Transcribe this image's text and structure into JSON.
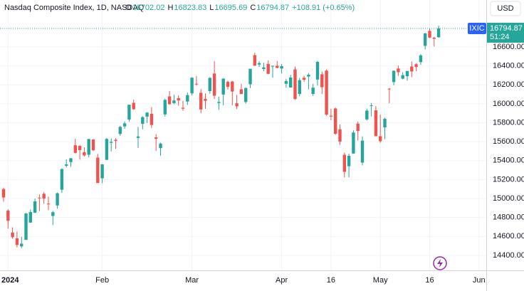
{
  "chart_data": {
    "type": "candlestick",
    "title": "Nasdaq Composite Index, 1D, NASDAQ",
    "legend_labels": [
      "O",
      "H",
      "L",
      "C"
    ],
    "change": "+108.91 (+0.65%)",
    "currency": "USD",
    "symbol": "IXIC",
    "countdown": "51:24",
    "up_color": "#26a69a",
    "down_color": "#ef5350",
    "grid": true,
    "categories": [
      null,
      "2024",
      null,
      null,
      null,
      null,
      null,
      null,
      null,
      null,
      null,
      null,
      null,
      null,
      null,
      null,
      null,
      null,
      null,
      null,
      null,
      null,
      "Feb",
      null,
      null,
      null,
      null,
      null,
      null,
      null,
      null,
      null,
      null,
      null,
      null,
      null,
      null,
      null,
      null,
      null,
      null,
      null,
      "Mar",
      null,
      null,
      null,
      null,
      null,
      null,
      null,
      null,
      null,
      null,
      null,
      null,
      null,
      null,
      null,
      null,
      null,
      null,
      null,
      "Apr",
      null,
      null,
      null,
      null,
      null,
      null,
      null,
      null,
      null,
      null,
      "16",
      null,
      null,
      null,
      null,
      null,
      null,
      null,
      null,
      null,
      null,
      "May",
      null,
      null,
      null,
      null,
      null,
      null,
      null,
      null,
      null,
      null,
      "16",
      null,
      null,
      null,
      null,
      null,
      null,
      null,
      null,
      null,
      null,
      "Jun"
    ],
    "open": [
      15100,
      14873,
      14641,
      14580,
      14495,
      14564,
      14746,
      14851,
      15009,
      15050,
      14946,
      14816,
      14927,
      15093,
      15346,
      15385,
      15562,
      15555,
      15489,
      15462,
      15623,
      15432,
      15213,
      15408,
      15588,
      15620,
      15681,
      15761,
      15834,
      16010,
      15640,
      15788,
      15864,
      15895,
      15645,
      15532,
      15888,
      16078,
      16007,
      16060,
      15958,
      16023,
      16110,
      16211,
      16116,
      16051,
      16134,
      16319,
      16008,
      16097,
      16232,
      16235,
      16005,
      16153,
      16019,
      16206,
      16513,
      16414,
      16367,
      16420,
      16397,
      16401,
      16371,
      16211,
      16172,
      16363,
      16103,
      16274,
      16287,
      16104,
      16256,
      16311,
      16350,
      15874,
      15950,
      15731,
      15462,
      15341,
      15475,
      15791,
      15379,
      15835,
      15982,
      15931,
      15658,
      15751,
      16159,
      16229,
      16372,
      16265,
      16291,
      16393,
      16417,
      16440,
      16611,
      16769,
      16697,
      16702.02,
      null,
      null,
      null,
      null,
      null,
      null,
      null,
      null,
      null
    ],
    "high": [
      15112,
      14887,
      14696,
      14651,
      14596,
      14847,
      14884,
      14999,
      15043,
      15069,
      15019,
      14868,
      15064,
      15320,
      15413,
      15428,
      15629,
      15563,
      15541,
      15628,
      15626,
      15471,
      15363,
      15639,
      15634,
      15636,
      15768,
      15813,
      15990,
      16043,
      15756,
      15870,
      15913,
      15964,
      15678,
      15590,
      16055,
      16135,
      16096,
      16089,
      16030,
      16119,
      16281,
      16293,
      16154,
      16110,
      16281,
      16449,
      16075,
      16271,
      16244,
      16240,
      16093,
      16210,
      16171,
      16370,
      16539,
      16449,
      16433,
      16458,
      16403,
      16452,
      16418,
      16262,
      16306,
      16392,
      16273,
      16296,
      16323,
      16210,
      16453,
      16340,
      16363,
      15948,
      15960,
      15781,
      15484,
      15472,
      15720,
      15811,
      15656,
      15948,
      16008,
      15974,
      15887,
      15853,
      16167,
      16350,
      16403,
      16333,
      16346,
      16444,
      16427,
      16524,
      16748,
      16795,
      16706,
      16823.83,
      null,
      null,
      null,
      null,
      null,
      null,
      null,
      null,
      null
    ],
    "low": [
      14966,
      14682,
      14576,
      14485,
      14477,
      14564,
      14743,
      14846,
      14867,
      14944,
      14877,
      14719,
      14892,
      15059,
      15328,
      15336,
      15476,
      15411,
      15443,
      15434,
      15501,
      15164,
      15162,
      15408,
      15497,
      15525,
      15662,
      15737,
      15809,
      15937,
      15533,
      15730,
      15798,
      15744,
      15503,
      15451,
      15865,
      15989,
      15996,
      15979,
      15927,
      15988,
      16088,
      16191,
      15899,
      15946,
      16105,
      16051,
      15936,
      15986,
      16150,
      15985,
      15944,
      16101,
      16001,
      16165,
      16400,
      16389,
      16344,
      16312,
      16275,
      16373,
      16320,
      16169,
      16169,
      16042,
      16080,
      16231,
      16152,
      16083,
      16191,
      16101,
      15873,
      15826,
      15673,
      15567,
      15223,
      15223,
      15474,
      15612,
      15349,
      15824,
      15867,
      15657,
      15589,
      15627,
      16006,
      16196,
      16294,
      16258,
      16244,
      16281,
      16345,
      16412,
      16574,
      16693,
      16605,
      16695.69,
      null,
      null,
      null,
      null,
      null,
      null,
      null,
      null,
      null
    ],
    "close": [
      15011,
      14765,
      14592,
      14510,
      14524,
      14843,
      14857,
      14970,
      15003,
      15000,
      14944,
      14856,
      15056,
      15311,
      15360,
      15425,
      15482,
      15511,
      15455,
      15628,
      15509,
      15164,
      15361,
      15629,
      15598,
      15609,
      15756,
      15793,
      15990,
      15942,
      15655,
      15859,
      15906,
      15776,
      15630,
      15580,
      16041,
      15996,
      16035,
      16035,
      15948,
      16092,
      16275,
      16207,
      15940,
      16031,
      16273,
      16085,
      16019,
      16265,
      16178,
      16129,
      15973,
      16103,
      16166,
      16369,
      16402,
      16429,
      16384,
      16316,
      16400,
      16379,
      16397,
      16240,
      16277,
      16050,
      16249,
      16253,
      16306,
      16170,
      16442,
      16175,
      15885,
      15865,
      15683,
      15601,
      15282,
      15451,
      15697,
      15713,
      15611,
      15928,
      15983,
      15658,
      15605,
      15841,
      16156,
      16349,
      16333,
      16302,
      16346,
      16341,
      16388,
      16511,
      16743,
      16698,
      16686,
      16794.87,
      null,
      null,
      null,
      null,
      null,
      null,
      null,
      null,
      null
    ],
    "ylim": [
      14242,
      17095
    ],
    "yticks": [
      {
        "value": 14400,
        "label": "14400.00"
      },
      {
        "value": 14600,
        "label": "14600.00"
      },
      {
        "value": 14800,
        "label": "14800.00"
      },
      {
        "value": 15000,
        "label": "15000.00"
      },
      {
        "value": 15200,
        "label": "15200.00"
      },
      {
        "value": 15400,
        "label": "15400.00"
      },
      {
        "value": 15600,
        "label": "15600.00"
      },
      {
        "value": 15800,
        "label": "15800.00"
      },
      {
        "value": 16000,
        "label": "16000.00"
      },
      {
        "value": 16200,
        "label": "16200.00"
      },
      {
        "value": 16400,
        "label": "16400.00"
      },
      {
        "value": 16600,
        "label": "16600.00"
      }
    ]
  }
}
